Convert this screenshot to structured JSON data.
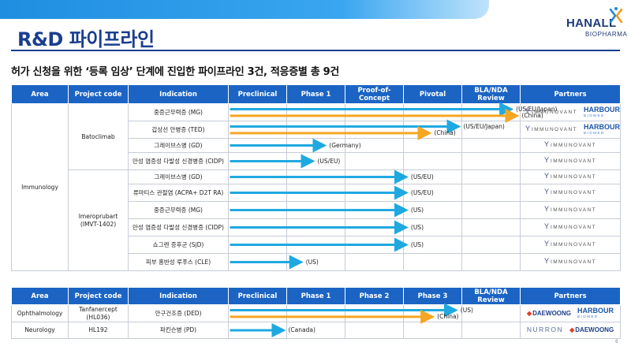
{
  "header": {
    "title": "R&D 파이프라인",
    "subtitle": "허가 신청을 위한 ‘등록 임상’ 단계에 진입한 파이프라인 3건, 적응증별 총 9건",
    "logo_text": "HANALL",
    "logo_sub": "BIOPHARMA"
  },
  "colors": {
    "brand_blue": "#1a3d8f",
    "header_blue": "#1b64c4",
    "arrow_blue": "#1fa9e0",
    "arrow_orange": "#f5a623"
  },
  "table1": {
    "headers": [
      "Area",
      "Project code",
      "Indication",
      "Preclinical",
      "Phase 1",
      "Proof-of-Concept",
      "Pivotal",
      "BLA/NDA Review",
      "Partners"
    ],
    "area": "Immunology",
    "groups": [
      {
        "code": "Batoclimab",
        "rows": [
          {
            "indication": "중증근무력증 (MG)",
            "arrows": [
              {
                "color": "blue",
                "end": 7.9,
                "label": "(US/EU/Japan)"
              },
              {
                "color": "orange",
                "end": 8.0,
                "label": "(China)"
              }
            ],
            "partners": [
              "immunovant",
              "harbour"
            ]
          },
          {
            "indication": "갑상선 안병증 (TED)",
            "arrows": [
              {
                "color": "blue",
                "end": 7.0,
                "label": "(US/EU/Japan)"
              },
              {
                "color": "orange",
                "end": 6.5,
                "label": "(China)"
              }
            ],
            "partners": [
              "immunovant",
              "harbour"
            ]
          },
          {
            "indication": "그레이브스병 (GD)",
            "arrows": [
              {
                "color": "blue",
                "end": 4.7,
                "label": "(Germany)"
              }
            ],
            "partners": [
              "immunovant"
            ]
          },
          {
            "indication": "만성 염증성 다발성 신경병증 (CIDP)",
            "arrows": [
              {
                "color": "blue",
                "end": 4.5,
                "label": "(US/EU)"
              }
            ],
            "partners": [
              "immunovant"
            ]
          }
        ]
      },
      {
        "code": "Imeroprubart (IMVT-1402)",
        "rows": [
          {
            "indication": "그레이브스병 (GD)",
            "arrows": [
              {
                "color": "blue",
                "end": 6.1,
                "label": "(US/EU)"
              }
            ],
            "partners": [
              "immunovant"
            ]
          },
          {
            "indication": "류마티스 관절염 (ACPA+ D2T RA)",
            "arrows": [
              {
                "color": "blue",
                "end": 6.1,
                "label": "(US/EU)"
              }
            ],
            "partners": [
              "immunovant"
            ]
          },
          {
            "indication": "중증근무력증 (MG)",
            "arrows": [
              {
                "color": "blue",
                "end": 6.1,
                "label": "(US)"
              }
            ],
            "partners": [
              "immunovant"
            ]
          },
          {
            "indication": "만성 염증성 다발성 신경병증 (CIDP)",
            "arrows": [
              {
                "color": "blue",
                "end": 6.1,
                "label": "(US)"
              }
            ],
            "partners": [
              "immunovant"
            ]
          },
          {
            "indication": "쇼그렌 증후군 (SjD)",
            "arrows": [
              {
                "color": "blue",
                "end": 6.1,
                "label": "(US)"
              }
            ],
            "partners": [
              "immunovant"
            ]
          },
          {
            "indication": "피부 홍반성 루푸스 (CLE)",
            "arrows": [
              {
                "color": "blue",
                "end": 4.3,
                "label": "(US)"
              }
            ],
            "partners": [
              "immunovant"
            ]
          }
        ]
      }
    ]
  },
  "table2": {
    "headers": [
      "Area",
      "Project code",
      "Indication",
      "Preclinical",
      "Phase 1",
      "Phase 2",
      "Phase 3",
      "BLA/NDA Review",
      "Partners"
    ],
    "rows": [
      {
        "area": "Ophthalmology",
        "code": "Tanfanercept (HL036)",
        "indication": "안구건조증 (DED)",
        "arrows": [
          {
            "color": "blue",
            "end": 6.95,
            "label": "(US)"
          },
          {
            "color": "orange",
            "end": 6.55,
            "label": "(China)"
          }
        ],
        "partners": [
          "daewoong",
          "harbour"
        ]
      },
      {
        "area": "Neurology",
        "code": "HL192",
        "indication": "파킨슨병 (PD)",
        "arrows": [
          {
            "color": "blue",
            "end": 4.0,
            "label": "(Canada)"
          }
        ],
        "partners": [
          "nurron",
          "daewoong"
        ]
      }
    ]
  },
  "partner_labels": {
    "immunovant": "IMMUNOVANT",
    "harbour": "HARBOUR",
    "harbour_sub": "BIOMED",
    "daewoong": "DAEWOONG",
    "nurron": "NURRON"
  },
  "page_number": "6"
}
